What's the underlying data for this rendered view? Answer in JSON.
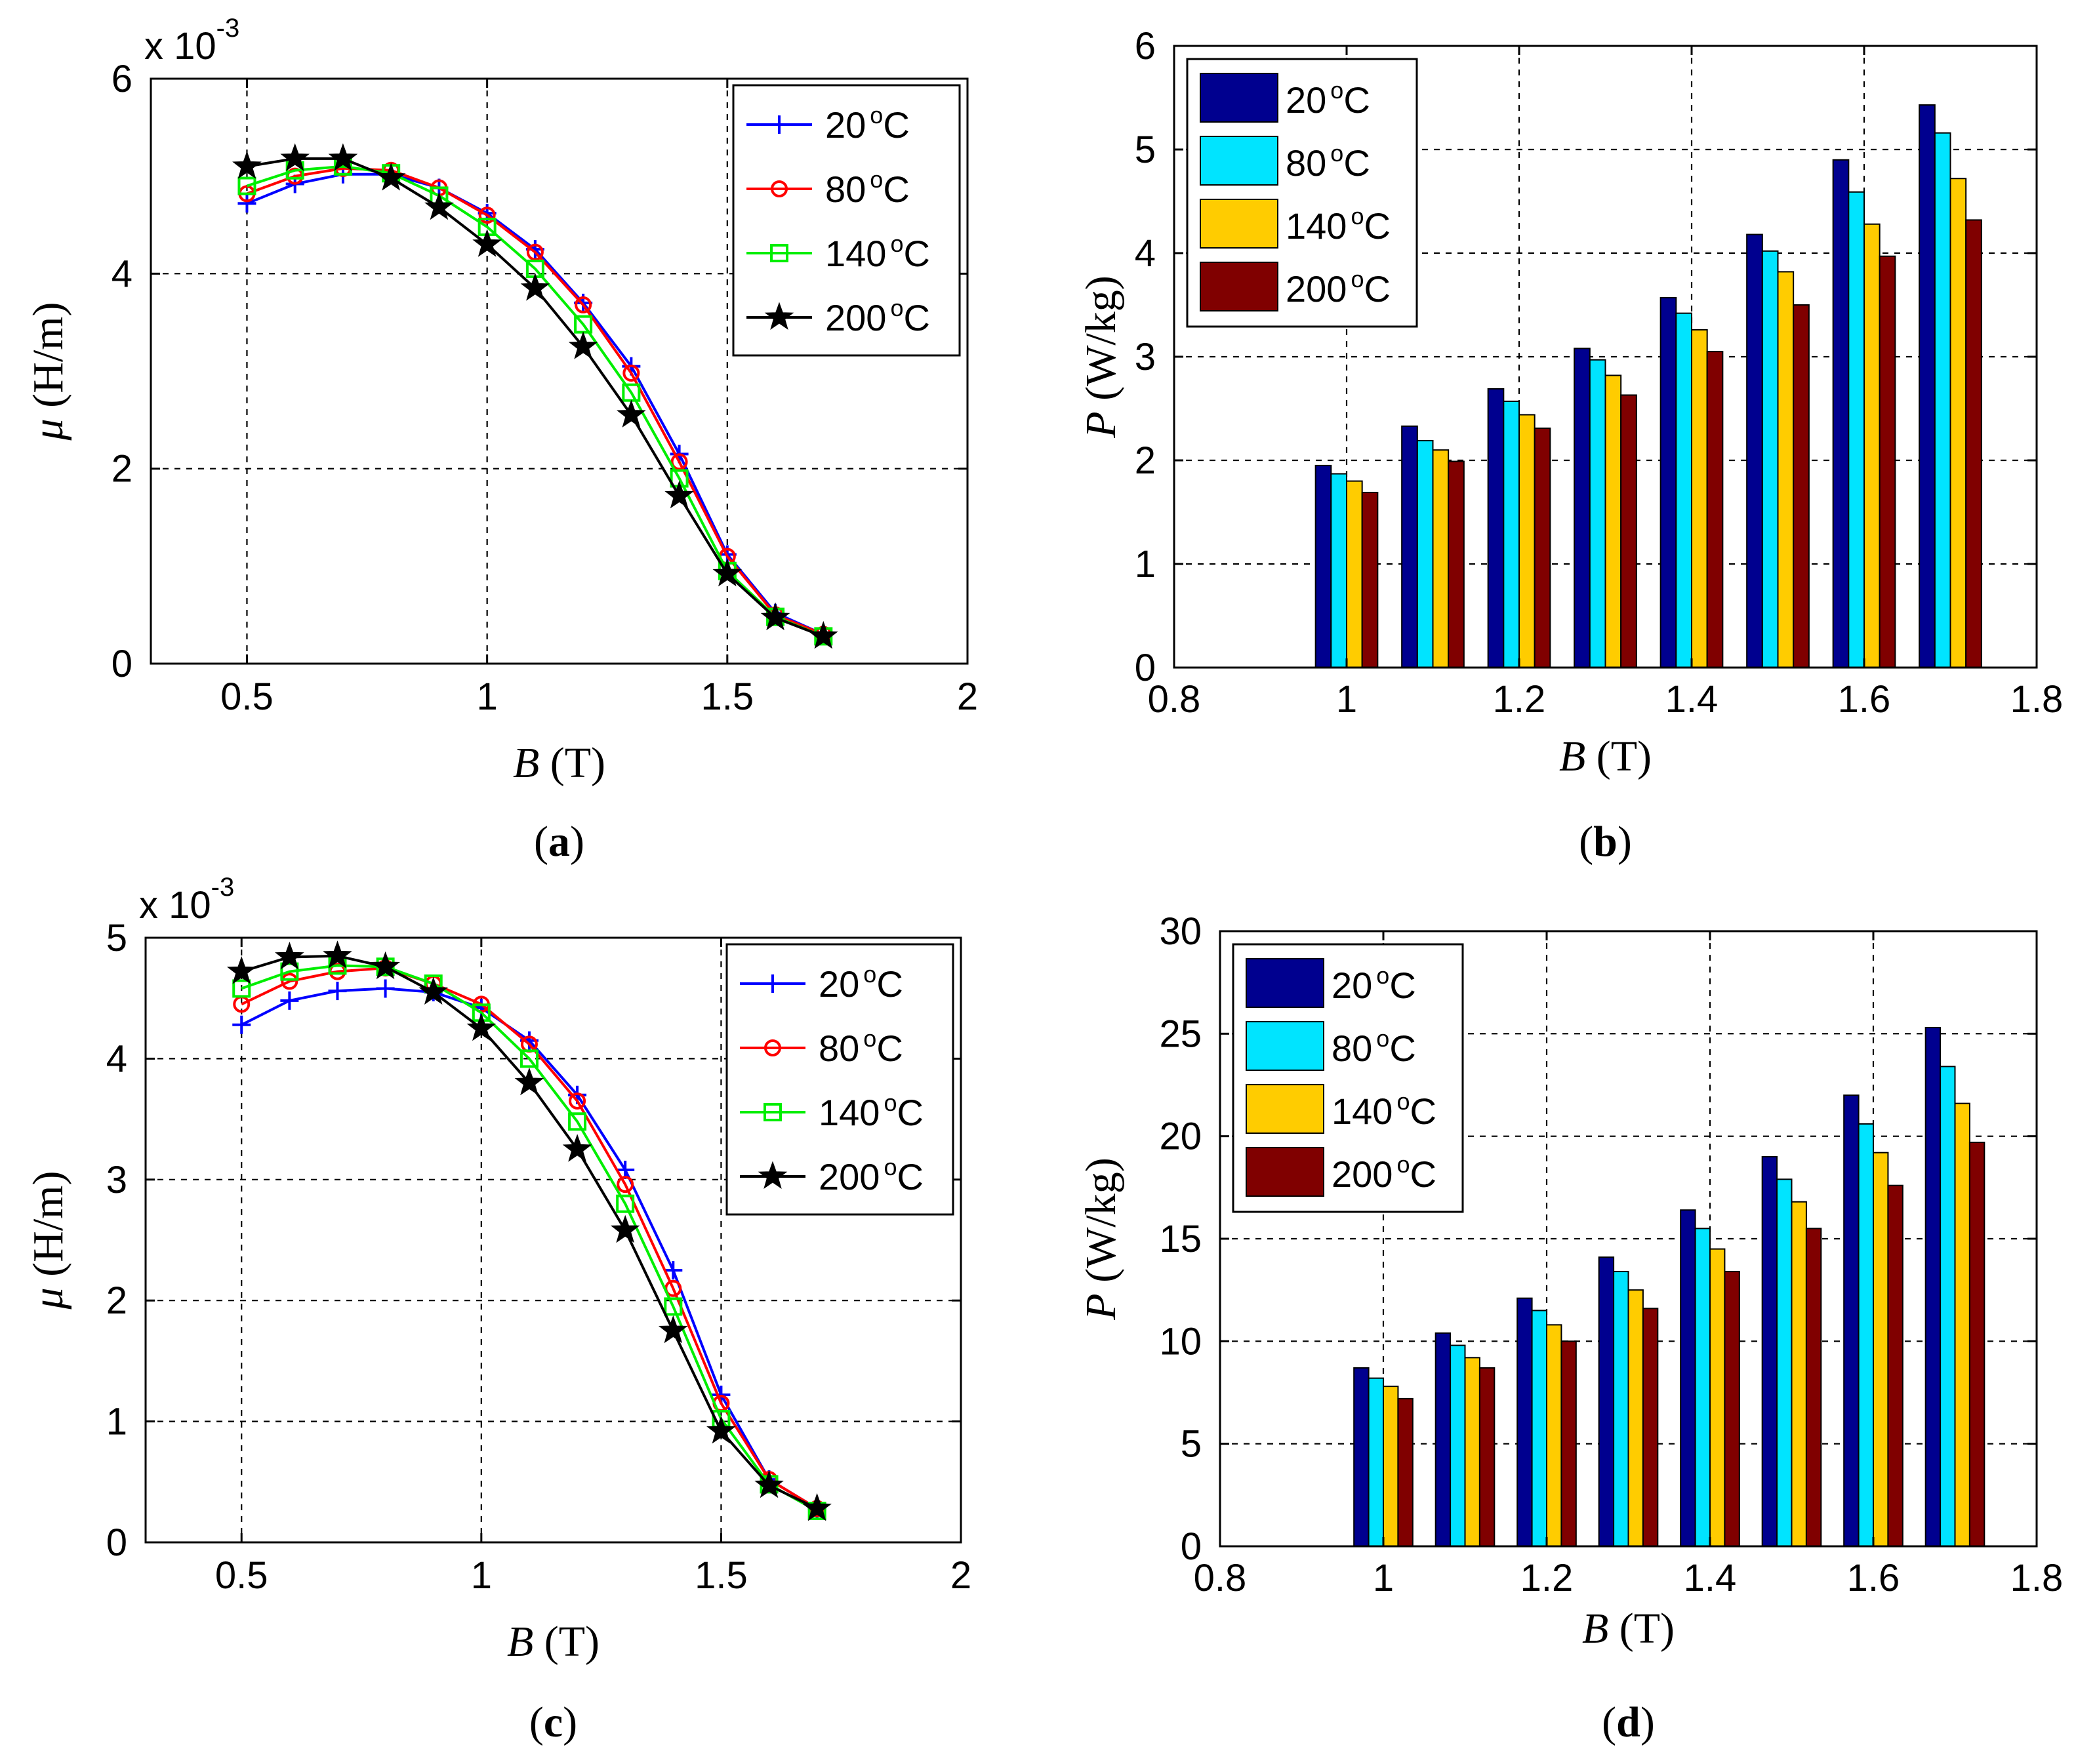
{
  "colors": {
    "blue_line": "#0000ff",
    "red_line": "#ff0000",
    "green_line": "#00ee00",
    "black_line": "#000000",
    "bar_20": "#00008f",
    "bar_80": "#00e4ff",
    "bar_140": "#ffcc00",
    "bar_200": "#800000"
  },
  "chart_data": [
    {
      "id": "a",
      "type": "line",
      "caption": "(a)",
      "caption_letter": "a",
      "exponent": "x 10",
      "exponent_power": "-3",
      "xlabel_var": "B",
      "xlabel_unit": "(T)",
      "ylabel_var": "μ",
      "ylabel_unit": "(H/m)",
      "xlim": [
        0.3,
        2.0
      ],
      "ylim": [
        0,
        6
      ],
      "x_ticks": [
        0.5,
        1,
        1.5,
        2
      ],
      "x_tick_labels": [
        "0.5",
        "1",
        "1.5",
        "2"
      ],
      "y_ticks": [
        0,
        2,
        4,
        6
      ],
      "y_tick_labels": [
        "0",
        "2",
        "4",
        "6"
      ],
      "grid": true,
      "legend_position": "top-right",
      "x": [
        0.5,
        0.6,
        0.7,
        0.8,
        0.9,
        1.0,
        1.1,
        1.2,
        1.3,
        1.4,
        1.5,
        1.6,
        1.7
      ],
      "series": [
        {
          "name": "20°C",
          "label_num": "20",
          "label_deg": "°C",
          "color": "#0000ff",
          "marker": "plus",
          "values": [
            4.72,
            4.92,
            5.02,
            5.02,
            4.88,
            4.62,
            4.25,
            3.7,
            3.05,
            2.15,
            1.12,
            0.52,
            0.3
          ]
        },
        {
          "name": "80°C",
          "label_num": "80",
          "label_deg": "°C",
          "color": "#ff0000",
          "marker": "circle",
          "values": [
            4.82,
            5.0,
            5.08,
            5.06,
            4.88,
            4.6,
            4.22,
            3.68,
            2.98,
            2.07,
            1.1,
            0.5,
            0.3
          ]
        },
        {
          "name": "140°C",
          "label_num": "140",
          "label_deg": "°C",
          "color": "#00ee00",
          "marker": "square",
          "values": [
            4.9,
            5.06,
            5.1,
            5.03,
            4.8,
            4.48,
            4.05,
            3.48,
            2.78,
            1.9,
            0.95,
            0.48,
            0.28
          ]
        },
        {
          "name": "200°C",
          "label_num": "200",
          "label_deg": "°C",
          "color": "#000000",
          "marker": "star",
          "values": [
            5.1,
            5.18,
            5.18,
            4.98,
            4.68,
            4.3,
            3.85,
            3.25,
            2.55,
            1.72,
            0.92,
            0.47,
            0.28
          ]
        }
      ]
    },
    {
      "id": "b",
      "type": "bar",
      "caption": "(b)",
      "caption_letter": "b",
      "xlabel_var": "B",
      "xlabel_unit": "(T)",
      "ylabel_var": "P",
      "ylabel_unit": "(W/kg)",
      "xlim": [
        0.8,
        1.8
      ],
      "ylim": [
        0,
        6
      ],
      "x_ticks": [
        0.8,
        1,
        1.2,
        1.4,
        1.6,
        1.8
      ],
      "x_tick_labels": [
        "0.8",
        "1",
        "1.2",
        "1.4",
        "1.6",
        "1.8"
      ],
      "y_ticks": [
        0,
        1,
        2,
        3,
        4,
        5,
        6
      ],
      "y_tick_labels": [
        "0",
        "1",
        "2",
        "3",
        "4",
        "5",
        "6"
      ],
      "grid": true,
      "legend_position": "top-left",
      "x": [
        1.0,
        1.1,
        1.2,
        1.3,
        1.4,
        1.5,
        1.6,
        1.7
      ],
      "series": [
        {
          "name": "20°C",
          "label_num": "20",
          "label_deg": "°C",
          "color": "#00008f",
          "values": [
            1.95,
            2.33,
            2.69,
            3.08,
            3.57,
            4.18,
            4.9,
            5.43
          ]
        },
        {
          "name": "80°C",
          "label_num": "80",
          "label_deg": "°C",
          "color": "#00e4ff",
          "values": [
            1.87,
            2.19,
            2.57,
            2.97,
            3.42,
            4.02,
            4.59,
            5.16
          ]
        },
        {
          "name": "140°C",
          "label_num": "140",
          "label_deg": "°C",
          "color": "#ffcc00",
          "values": [
            1.8,
            2.1,
            2.44,
            2.82,
            3.26,
            3.82,
            4.28,
            4.72
          ]
        },
        {
          "name": "200°C",
          "label_num": "200",
          "label_deg": "°C",
          "color": "#800000",
          "values": [
            1.69,
            1.99,
            2.31,
            2.63,
            3.05,
            3.5,
            3.97,
            4.32
          ]
        }
      ]
    },
    {
      "id": "c",
      "type": "line",
      "caption": "(c)",
      "caption_letter": "c",
      "exponent": "x 10",
      "exponent_power": "-3",
      "xlabel_var": "B",
      "xlabel_unit": "(T)",
      "ylabel_var": "μ",
      "ylabel_unit": "(H/m)",
      "xlim": [
        0.3,
        2.0
      ],
      "ylim": [
        0,
        5
      ],
      "x_ticks": [
        0.5,
        1,
        1.5,
        2
      ],
      "x_tick_labels": [
        "0.5",
        "1",
        "1.5",
        "2"
      ],
      "y_ticks": [
        0,
        1,
        2,
        3,
        4,
        5
      ],
      "y_tick_labels": [
        "0",
        "1",
        "2",
        "3",
        "4",
        "5"
      ],
      "grid": true,
      "legend_position": "top-right",
      "x": [
        0.5,
        0.6,
        0.7,
        0.8,
        0.9,
        1.0,
        1.1,
        1.2,
        1.3,
        1.4,
        1.5,
        1.6,
        1.7
      ],
      "series": [
        {
          "name": "20°C",
          "label_num": "20",
          "label_deg": "°C",
          "color": "#0000ff",
          "marker": "plus",
          "values": [
            4.28,
            4.48,
            4.56,
            4.58,
            4.55,
            4.42,
            4.15,
            3.7,
            3.08,
            2.25,
            1.22,
            0.52,
            0.28
          ]
        },
        {
          "name": "80°C",
          "label_num": "80",
          "label_deg": "°C",
          "color": "#ff0000",
          "marker": "circle",
          "values": [
            4.45,
            4.64,
            4.72,
            4.75,
            4.62,
            4.45,
            4.12,
            3.65,
            2.96,
            2.1,
            1.15,
            0.52,
            0.28
          ]
        },
        {
          "name": "140°C",
          "label_num": "140",
          "label_deg": "°C",
          "color": "#00ee00",
          "marker": "square",
          "values": [
            4.58,
            4.72,
            4.77,
            4.76,
            4.62,
            4.38,
            4.0,
            3.48,
            2.8,
            1.95,
            1.02,
            0.48,
            0.26
          ]
        },
        {
          "name": "200°C",
          "label_num": "200",
          "label_deg": "°C",
          "color": "#000000",
          "marker": "star",
          "values": [
            4.72,
            4.84,
            4.85,
            4.76,
            4.55,
            4.25,
            3.8,
            3.25,
            2.58,
            1.75,
            0.92,
            0.47,
            0.28
          ]
        }
      ]
    },
    {
      "id": "d",
      "type": "bar",
      "caption": "(d)",
      "caption_letter": "d",
      "xlabel_var": "B",
      "xlabel_unit": "(T)",
      "ylabel_var": "P",
      "ylabel_unit": "(W/kg)",
      "xlim": [
        0.8,
        1.8
      ],
      "ylim": [
        0,
        30
      ],
      "x_ticks": [
        0.8,
        1,
        1.2,
        1.4,
        1.6,
        1.8
      ],
      "x_tick_labels": [
        "0.8",
        "1",
        "1.2",
        "1.4",
        "1.6",
        "1.8"
      ],
      "y_ticks": [
        0,
        5,
        10,
        15,
        20,
        25,
        30
      ],
      "y_tick_labels": [
        "0",
        "5",
        "10",
        "15",
        "20",
        "25",
        "30"
      ],
      "grid": true,
      "legend_position": "top-left",
      "x": [
        1.0,
        1.1,
        1.2,
        1.3,
        1.4,
        1.5,
        1.6,
        1.7
      ],
      "series": [
        {
          "name": "20°C",
          "label_num": "20",
          "label_deg": "°C",
          "color": "#00008f",
          "values": [
            8.7,
            10.4,
            12.1,
            14.1,
            16.4,
            19.0,
            22.0,
            25.3
          ]
        },
        {
          "name": "80°C",
          "label_num": "80",
          "label_deg": "°C",
          "color": "#00e4ff",
          "values": [
            8.2,
            9.8,
            11.5,
            13.4,
            15.5,
            17.9,
            20.6,
            23.4
          ]
        },
        {
          "name": "140°C",
          "label_num": "140",
          "label_deg": "°C",
          "color": "#ffcc00",
          "values": [
            7.8,
            9.2,
            10.8,
            12.5,
            14.5,
            16.8,
            19.2,
            21.6
          ]
        },
        {
          "name": "200°C",
          "label_num": "200",
          "label_deg": "°C",
          "color": "#800000",
          "values": [
            7.2,
            8.7,
            10.0,
            11.6,
            13.4,
            15.5,
            17.6,
            19.7
          ]
        }
      ]
    }
  ]
}
